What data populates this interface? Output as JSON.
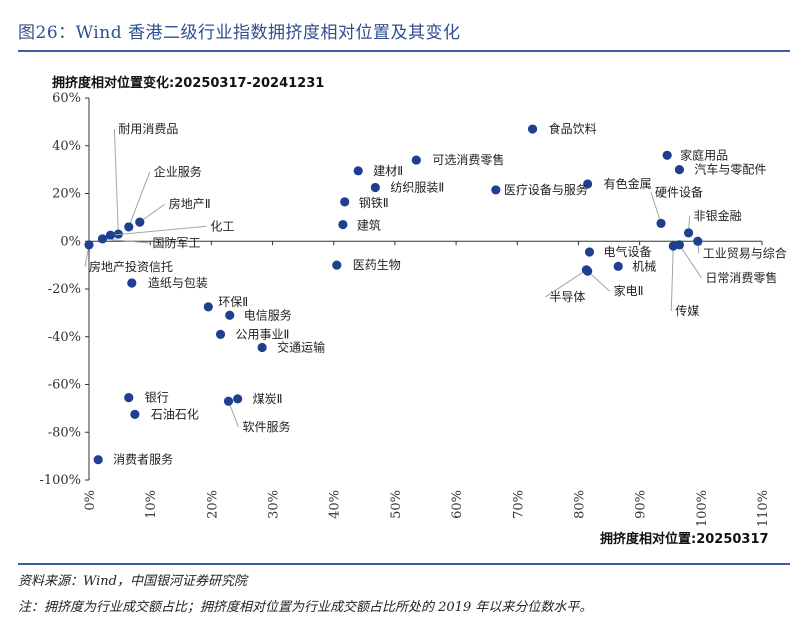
{
  "figure": {
    "title": "图26：Wind 香港二级行业指数拥挤度相对位置及其变化",
    "source": "资料来源：Wind，中国银河证券研究院",
    "note": "注：拥挤度为行业成交额占比；拥挤度相对位置为行业成交额占比所处的 2019 年以来分位数水平。",
    "accent_color": "#3a5ea8",
    "point_color": "#1f3f8f"
  },
  "chart_data": {
    "type": "scatter",
    "title": "拥挤度相对位置变化:20250317-20241231",
    "xlabel": "拥挤度相对位置:20250317",
    "ylabel": "",
    "xlim": [
      0,
      110
    ],
    "ylim": [
      -100,
      60
    ],
    "x_ticks": [
      "0%",
      "10%",
      "20%",
      "30%",
      "40%",
      "50%",
      "60%",
      "70%",
      "80%",
      "90%",
      "100%",
      "110%"
    ],
    "y_ticks": [
      "60%",
      "40%",
      "20%",
      "0%",
      "-20%",
      "-40%",
      "-60%",
      "-80%",
      "-100%"
    ],
    "grid": false,
    "points": [
      {
        "label": "食品饮料",
        "x": 72.5,
        "y": 47
      },
      {
        "label": "家庭用品",
        "x": 94.5,
        "y": 36
      },
      {
        "label": "汽车与零配件",
        "x": 96.5,
        "y": 30
      },
      {
        "label": "有色金属",
        "x": 81.5,
        "y": 24
      },
      {
        "label": "可选消费零售",
        "x": 53.5,
        "y": 34
      },
      {
        "label": "建材Ⅱ",
        "x": 44,
        "y": 29.5
      },
      {
        "label": "纺织服装Ⅱ",
        "x": 46.8,
        "y": 22.5
      },
      {
        "label": "医疗设备与服务",
        "x": 66.5,
        "y": 21.5
      },
      {
        "label": "钢铁Ⅱ",
        "x": 41.8,
        "y": 16.5
      },
      {
        "label": "建筑",
        "x": 41.5,
        "y": 7
      },
      {
        "label": "耐用消费品",
        "x": 4.8,
        "y": 3
      },
      {
        "label": "企业服务",
        "x": 6.5,
        "y": 6
      },
      {
        "label": "房地产Ⅱ",
        "x": 8.3,
        "y": 8
      },
      {
        "label": "化工",
        "x": 3.5,
        "y": 2.5
      },
      {
        "label": "国防军工",
        "x": 2.2,
        "y": 1
      },
      {
        "label": "房地产投资信托",
        "x": 0,
        "y": -1.5
      },
      {
        "label": "医药生物",
        "x": 40.5,
        "y": -10
      },
      {
        "label": "硬件设备",
        "x": 93.5,
        "y": 7.5
      },
      {
        "label": "非银金融",
        "x": 98,
        "y": 3.5
      },
      {
        "label": "工业贸易与综合",
        "x": 99.5,
        "y": 0
      },
      {
        "label": "日常消费零售",
        "x": 96.5,
        "y": -1.5
      },
      {
        "label": "传媒",
        "x": 95.5,
        "y": -2
      },
      {
        "label": "电气设备",
        "x": 81.8,
        "y": -4.5
      },
      {
        "label": "机械",
        "x": 86.5,
        "y": -10.5
      },
      {
        "label": "家电Ⅱ",
        "x": 81.5,
        "y": -12.5
      },
      {
        "label": "半导体",
        "x": 81.3,
        "y": -12
      },
      {
        "label": "造纸与包装",
        "x": 7,
        "y": -17.5
      },
      {
        "label": "环保Ⅱ",
        "x": 19.5,
        "y": -27.5
      },
      {
        "label": "电信服务",
        "x": 23,
        "y": -31
      },
      {
        "label": "公用事业Ⅱ",
        "x": 21.5,
        "y": -39
      },
      {
        "label": "交通运输",
        "x": 28.3,
        "y": -44.5
      },
      {
        "label": "银行",
        "x": 6.5,
        "y": -65.5
      },
      {
        "label": "石油石化",
        "x": 7.5,
        "y": -72.5
      },
      {
        "label": "煤炭Ⅱ",
        "x": 24.3,
        "y": -66
      },
      {
        "label": "软件服务",
        "x": 22.8,
        "y": -67
      },
      {
        "label": "消费者服务",
        "x": 1.5,
        "y": -91.5
      }
    ]
  }
}
